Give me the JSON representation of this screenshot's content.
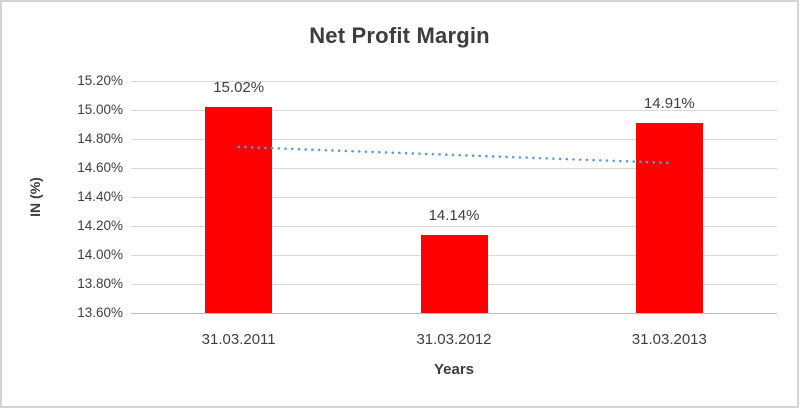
{
  "chart_data": {
    "type": "bar",
    "title": "Net Profit Margin",
    "xlabel": "Years",
    "ylabel": "IN (%)",
    "categories": [
      "31.03.2011",
      "31.03.2012",
      "31.03.2013"
    ],
    "series": [
      {
        "name": "Net Profit Margin",
        "values": [
          15.02,
          14.14,
          14.91
        ]
      }
    ],
    "data_labels": [
      "15.02%",
      "14.14%",
      "14.91%"
    ],
    "axis": {
      "y_min": 13.6,
      "y_max": 15.2,
      "y_step": 0.2,
      "y_ticks": [
        "15.20%",
        "15.00%",
        "14.80%",
        "14.60%",
        "14.40%",
        "14.20%",
        "14.00%",
        "13.80%",
        "13.60%"
      ],
      "grid": true
    },
    "legend": "none",
    "colors": {
      "bar": "#ff0000",
      "trendline": "#5b9bd5",
      "gridline": "#d9d9d9",
      "axis_line": "#bfbfbf",
      "text": "#404040",
      "title_text": "#3d3d3d"
    },
    "trendline": {
      "type": "linear",
      "style": "dotted",
      "start_value": 14.745,
      "end_value": 14.635
    }
  }
}
